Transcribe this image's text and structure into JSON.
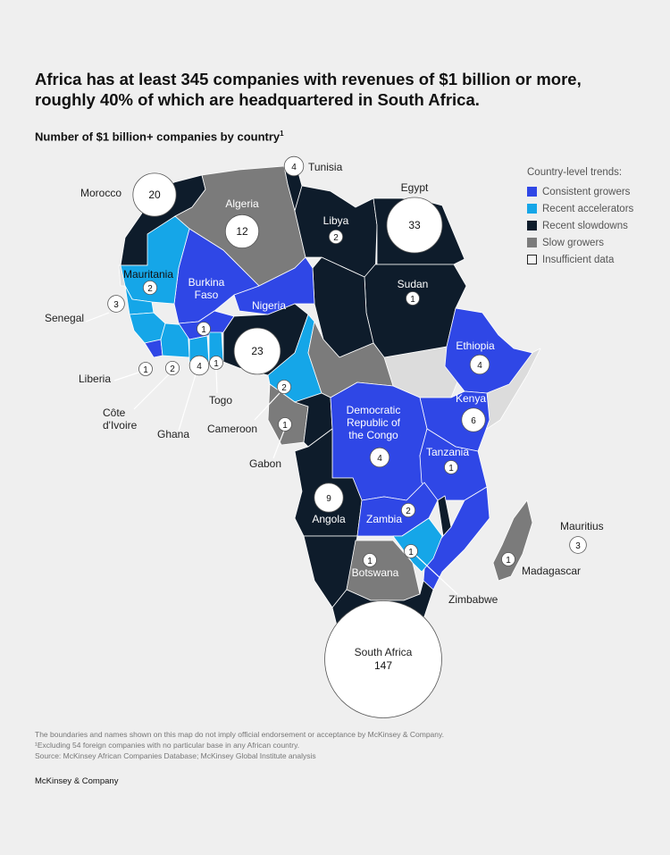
{
  "title": "Africa has at least 345 companies with revenues of $1 billion or more, roughly 40% of which are headquartered in South Africa.",
  "subtitle": "Number of $1 billion+ companies by country",
  "subtitle_note_marker": "1",
  "legend": {
    "title": "Country-level trends:",
    "items": [
      {
        "label": "Consistent growers",
        "color": "#2f47e6"
      },
      {
        "label": "Recent accelerators",
        "color": "#15a6e8"
      },
      {
        "label": "Recent slowdowns",
        "color": "#0e1c2b"
      },
      {
        "label": "Slow growers",
        "color": "#7b7b7b"
      },
      {
        "label": "Insufficient data",
        "color": "#e5e5e5"
      }
    ]
  },
  "countries": [
    {
      "name": "Morocco",
      "count": "20",
      "trend": "Recent slowdowns"
    },
    {
      "name": "Tunisia",
      "count": "4",
      "trend": "Recent slowdowns"
    },
    {
      "name": "Algeria",
      "count": "12",
      "trend": "Slow growers"
    },
    {
      "name": "Libya",
      "count": "2",
      "trend": "Recent slowdowns"
    },
    {
      "name": "Egypt",
      "count": "33",
      "trend": "Recent slowdowns"
    },
    {
      "name": "Mauritania",
      "count": "2",
      "trend": "Recent accelerators"
    },
    {
      "name": "Senegal",
      "count": "3",
      "trend": "Recent accelerators"
    },
    {
      "name": "Burkina Faso",
      "count": "1",
      "trend": "Consistent growers"
    },
    {
      "name": "Sudan",
      "count": "1",
      "trend": "Recent slowdowns"
    },
    {
      "name": "Nigeria",
      "count": "23",
      "trend": "Recent slowdowns"
    },
    {
      "name": "Liberia",
      "count": "1",
      "trend": "Consistent growers"
    },
    {
      "name": "Côte d'Ivoire",
      "count": "2",
      "trend": "Recent accelerators"
    },
    {
      "name": "Ghana",
      "count": "4",
      "trend": "Recent accelerators"
    },
    {
      "name": "Togo",
      "count": "1",
      "trend": "Recent accelerators"
    },
    {
      "name": "Cameroon",
      "count": "2",
      "trend": "Recent accelerators"
    },
    {
      "name": "Ethiopia",
      "count": "4",
      "trend": "Consistent growers"
    },
    {
      "name": "Kenya",
      "count": "6",
      "trend": "Consistent growers"
    },
    {
      "name": "Gabon",
      "count": "1",
      "trend": "Slow growers"
    },
    {
      "name": "Democratic Republic of the Congo",
      "count": "4",
      "trend": "Consistent growers"
    },
    {
      "name": "Tanzania",
      "count": "1",
      "trend": "Consistent growers"
    },
    {
      "name": "Angola",
      "count": "9",
      "trend": "Recent slowdowns"
    },
    {
      "name": "Zambia",
      "count": "2",
      "trend": "Consistent growers"
    },
    {
      "name": "Mauritius",
      "count": "3",
      "trend": "Insufficient data"
    },
    {
      "name": "Madagascar",
      "count": "1",
      "trend": "Slow growers"
    },
    {
      "name": "Botswana",
      "count": "1",
      "trend": "Slow growers"
    },
    {
      "name": "Zimbabwe",
      "count": "1",
      "trend": "Recent accelerators"
    },
    {
      "name": "South Africa",
      "count": "147",
      "trend": "Recent slowdowns"
    }
  ],
  "notes": [
    "The boundaries and names shown on this map do not imply official endorsement or acceptance by McKinsey & Company.",
    "¹Excluding 54 foreign companies with no particular base in any African country.",
    " Source: McKinsey African Companies Database; McKinsey Global Institute analysis"
  ],
  "brand": "McKinsey & Company"
}
